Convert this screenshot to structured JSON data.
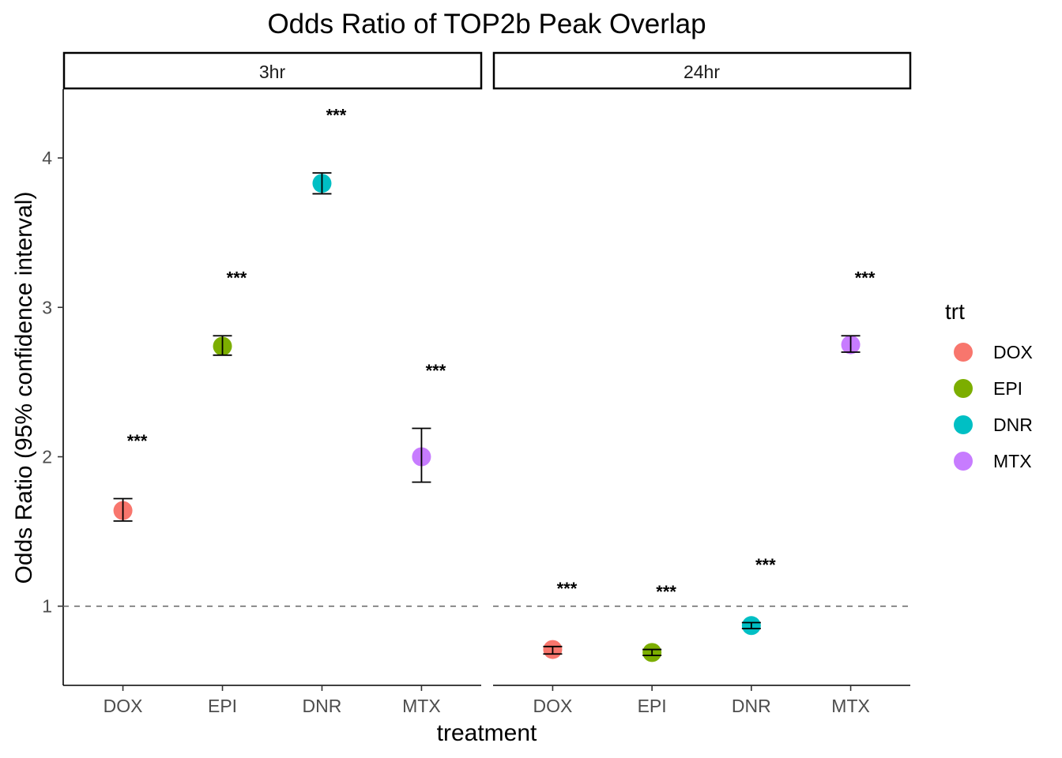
{
  "chart_data": {
    "type": "scatter",
    "title": "Odds Ratio of TOP2b Peak Overlap",
    "xlabel": "treatment",
    "ylabel": "Odds Ratio (95% confidence interval)",
    "ylim": [
      0.47,
      4.46
    ],
    "yticks": [
      1,
      2,
      3,
      4
    ],
    "reference_line": 1,
    "categories": [
      "DOX",
      "EPI",
      "DNR",
      "MTX"
    ],
    "facets": [
      {
        "label": "3hr",
        "points": [
          {
            "treatment": "DOX",
            "or": 1.64,
            "lower": 1.57,
            "upper": 1.72,
            "significance": "***"
          },
          {
            "treatment": "EPI",
            "or": 2.74,
            "lower": 2.68,
            "upper": 2.81,
            "significance": "***"
          },
          {
            "treatment": "DNR",
            "or": 3.83,
            "lower": 3.76,
            "upper": 3.9,
            "significance": "***"
          },
          {
            "treatment": "MTX",
            "or": 2.0,
            "lower": 1.83,
            "upper": 2.19,
            "significance": "***"
          }
        ]
      },
      {
        "label": "24hr",
        "points": [
          {
            "treatment": "DOX",
            "or": 0.71,
            "lower": 0.68,
            "upper": 0.73,
            "significance": "***"
          },
          {
            "treatment": "EPI",
            "or": 0.69,
            "lower": 0.67,
            "upper": 0.71,
            "significance": "***"
          },
          {
            "treatment": "DNR",
            "or": 0.87,
            "lower": 0.85,
            "upper": 0.89,
            "significance": "***"
          },
          {
            "treatment": "MTX",
            "or": 2.75,
            "lower": 2.7,
            "upper": 2.81,
            "significance": "***"
          }
        ]
      }
    ],
    "legend": {
      "title": "trt",
      "placement": "right",
      "entries": [
        {
          "label": "DOX",
          "color": "#F8766D"
        },
        {
          "label": "EPI",
          "color": "#7CAE00"
        },
        {
          "label": "DNR",
          "color": "#00BFC4"
        },
        {
          "label": "MTX",
          "color": "#C77CFF"
        }
      ]
    },
    "grid": false
  }
}
